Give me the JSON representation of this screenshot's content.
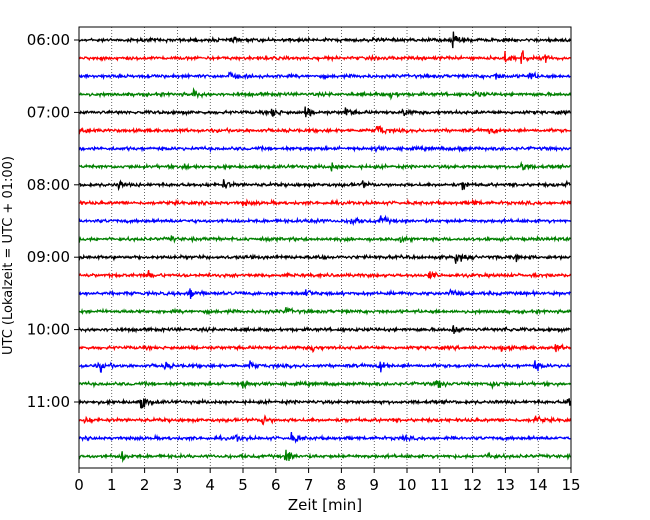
{
  "chart_data": {
    "type": "line",
    "title": "",
    "xlabel": "Zeit  [min]",
    "ylabel": "UTC (Lokalzeit = UTC + 01:00)",
    "xlim": [
      0,
      15
    ],
    "x_ticks": [
      "0",
      "1",
      "2",
      "3",
      "4",
      "5",
      "6",
      "7",
      "8",
      "9",
      "10",
      "11",
      "12",
      "13",
      "14",
      "15"
    ],
    "y_ticks": [
      {
        "label": "06:00",
        "row": 0
      },
      {
        "label": "07:00",
        "row": 4
      },
      {
        "label": "08:00",
        "row": 8
      },
      {
        "label": "09:00",
        "row": 12
      },
      {
        "label": "10:00",
        "row": 16
      },
      {
        "label": "11:00",
        "row": 20
      }
    ],
    "grid": "vertical dotted",
    "row_minutes": 15,
    "series_colors": [
      "#000000",
      "#ff0000",
      "#0000ff",
      "#008000"
    ],
    "traces": [
      {
        "start": "06:00",
        "events": [
          [
            11.4,
            1.0
          ],
          [
            4.6,
            0.35
          ],
          [
            9.0,
            0.3
          ]
        ]
      },
      {
        "start": "06:15",
        "events": [
          [
            13.0,
            0.8
          ],
          [
            13.5,
            0.9
          ],
          [
            14.2,
            0.4
          ]
        ]
      },
      {
        "start": "06:30",
        "events": [
          [
            4.6,
            0.45
          ],
          [
            12.7,
            0.45
          ],
          [
            13.7,
            0.6
          ]
        ]
      },
      {
        "start": "06:45",
        "events": [
          [
            3.5,
            0.5
          ],
          [
            9.5,
            0.45
          ],
          [
            12.1,
            0.35
          ]
        ]
      },
      {
        "start": "07:00",
        "events": [
          [
            5.9,
            0.7
          ],
          [
            6.9,
            0.8
          ],
          [
            8.1,
            0.6
          ],
          [
            9.9,
            0.5
          ]
        ]
      },
      {
        "start": "07:15",
        "events": [
          [
            0.2,
            0.5
          ],
          [
            9.1,
            1.0
          ],
          [
            12.5,
            0.35
          ]
        ]
      },
      {
        "start": "07:30",
        "events": [
          [
            9.0,
            0.3
          ],
          [
            11.6,
            0.3
          ]
        ]
      },
      {
        "start": "07:45",
        "events": [
          [
            3.2,
            0.5
          ],
          [
            7.7,
            0.45
          ],
          [
            13.5,
            0.7
          ]
        ]
      },
      {
        "start": "08:00",
        "events": [
          [
            1.2,
            0.4
          ],
          [
            4.4,
            0.55
          ],
          [
            8.6,
            0.45
          ],
          [
            11.7,
            0.6
          ],
          [
            14.9,
            1.0
          ]
        ]
      },
      {
        "start": "08:15",
        "events": [
          [
            5.0,
            0.3
          ],
          [
            12.0,
            0.3
          ]
        ]
      },
      {
        "start": "08:30",
        "events": [
          [
            7.1,
            0.55
          ],
          [
            8.3,
            0.6
          ],
          [
            9.2,
            0.75
          ]
        ]
      },
      {
        "start": "08:45",
        "events": [
          [
            2.8,
            0.3
          ],
          [
            9.8,
            0.3
          ]
        ]
      },
      {
        "start": "09:00",
        "events": [
          [
            7.3,
            0.55
          ],
          [
            11.5,
            1.0
          ],
          [
            13.3,
            0.35
          ]
        ]
      },
      {
        "start": "09:15",
        "events": [
          [
            2.1,
            0.5
          ],
          [
            10.7,
            0.45
          ]
        ]
      },
      {
        "start": "09:30",
        "events": [
          [
            3.4,
            1.0
          ],
          [
            6.9,
            0.7
          ],
          [
            11.3,
            0.5
          ]
        ]
      },
      {
        "start": "09:45",
        "events": [
          [
            6.3,
            0.45
          ]
        ]
      },
      {
        "start": "10:00",
        "events": [
          [
            11.4,
            0.6
          ],
          [
            13.0,
            0.3
          ]
        ]
      },
      {
        "start": "10:15",
        "events": [
          [
            7.1,
            0.5
          ],
          [
            12.9,
            0.45
          ],
          [
            14.5,
            0.55
          ]
        ]
      },
      {
        "start": "10:30",
        "events": [
          [
            0.6,
            0.8
          ],
          [
            2.6,
            0.45
          ],
          [
            5.2,
            0.5
          ],
          [
            9.2,
            0.75
          ],
          [
            13.9,
            0.55
          ]
        ]
      },
      {
        "start": "10:45",
        "events": [
          [
            5.0,
            0.7
          ],
          [
            10.9,
            0.75
          ],
          [
            12.6,
            0.55
          ]
        ]
      },
      {
        "start": "11:00",
        "events": [
          [
            1.9,
            1.0
          ],
          [
            14.9,
            0.8
          ]
        ]
      },
      {
        "start": "11:15",
        "events": [
          [
            0.2,
            0.4
          ],
          [
            5.6,
            0.8
          ],
          [
            13.9,
            0.6
          ]
        ]
      },
      {
        "start": "11:30",
        "events": [
          [
            4.8,
            0.35
          ],
          [
            6.5,
            0.7
          ],
          [
            9.8,
            0.35
          ]
        ]
      },
      {
        "start": "11:45",
        "events": [
          [
            1.3,
            0.6
          ],
          [
            6.3,
            1.0
          ],
          [
            12.5,
            0.55
          ]
        ]
      }
    ]
  }
}
